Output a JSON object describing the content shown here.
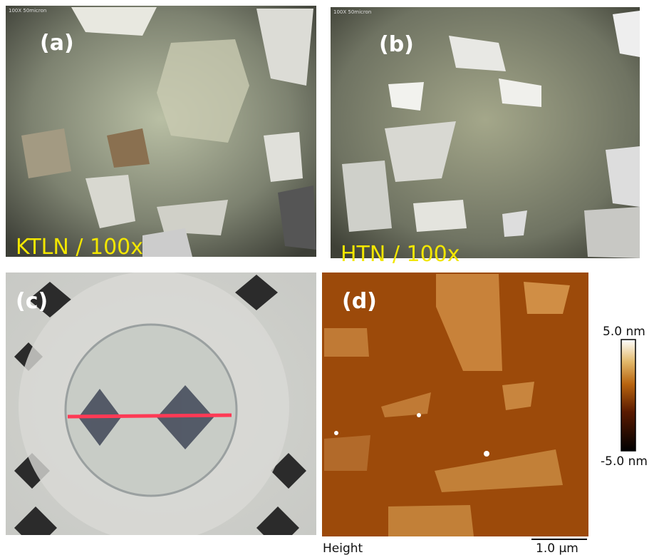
{
  "panels": [
    {
      "label": "(a)",
      "caption": "KTLN / 100x",
      "scale_text": "100X  50micron"
    },
    {
      "label": "(b)",
      "caption": "HTN / 100x",
      "scale_text": "100X  50micron"
    },
    {
      "label": "(c)"
    },
    {
      "label": "(d)",
      "colorbar_max": "5.0 nm",
      "colorbar_min": "-5.0 nm",
      "channel": "Height",
      "scale_bar": "1.0 µm"
    }
  ]
}
